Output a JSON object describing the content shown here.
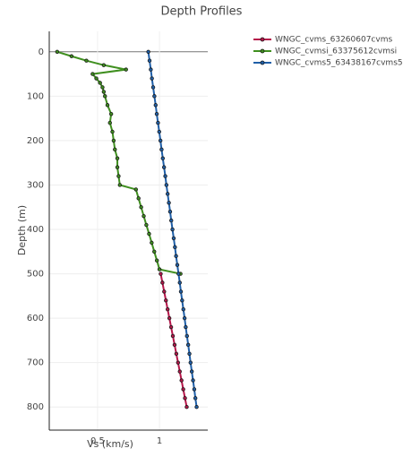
{
  "chart_data": {
    "type": "line",
    "title": "Depth Profiles",
    "xlabel": "Vs (km/s)",
    "ylabel": "Depth (m)",
    "xlim": [
      0.11,
      1.39
    ],
    "xticks": [
      0.5,
      1
    ],
    "ylim": [
      852,
      -46
    ],
    "yticks": [
      0,
      100,
      200,
      300,
      400,
      500,
      600,
      700,
      800
    ],
    "grid": true,
    "legend": "outside right",
    "series": [
      {
        "name": "WNGC_cvms_63260607cvms",
        "color": "#b5174a",
        "x": [
          1.01,
          1.024,
          1.038,
          1.052,
          1.066,
          1.08,
          1.094,
          1.108,
          1.122,
          1.136,
          1.15,
          1.164,
          1.178,
          1.192,
          1.206,
          1.22
        ],
        "y": [
          500,
          520,
          540,
          560,
          580,
          600,
          620,
          640,
          660,
          680,
          700,
          720,
          740,
          760,
          780,
          800
        ]
      },
      {
        "name": "WNGC_cvmsi_63375612cvmsi",
        "color": "#3f8f1f",
        "x": [
          0.174,
          0.29,
          0.41,
          0.55,
          0.73,
          0.46,
          0.49,
          0.52,
          0.54,
          0.55,
          0.56,
          0.58,
          0.61,
          0.6,
          0.62,
          0.63,
          0.64,
          0.66,
          0.66,
          0.67,
          0.68,
          0.81,
          0.831,
          0.852,
          0.873,
          0.894,
          0.916,
          0.937,
          0.958,
          0.979,
          1.0,
          1.17
        ],
        "y": [
          0,
          10,
          20,
          30,
          40,
          50,
          60,
          70,
          80,
          90,
          100,
          120,
          140,
          160,
          180,
          200,
          220,
          240,
          260,
          280,
          300,
          310,
          330,
          350,
          370,
          390,
          410,
          430,
          450,
          470,
          490,
          500
        ]
      },
      {
        "name": "WNGC_cvms5_63438167cvms5",
        "color": "#1f5fa8",
        "x": [
          0.91,
          0.92,
          0.93,
          0.939,
          0.949,
          0.959,
          0.969,
          0.978,
          0.988,
          0.998,
          1.008,
          1.017,
          1.027,
          1.037,
          1.047,
          1.056,
          1.066,
          1.076,
          1.086,
          1.095,
          1.105,
          1.115,
          1.125,
          1.134,
          1.144,
          1.154,
          1.164,
          1.173,
          1.183,
          1.193,
          1.203,
          1.212,
          1.222,
          1.232,
          1.242,
          1.251,
          1.261,
          1.271,
          1.281,
          1.29,
          1.3
        ],
        "y": [
          0,
          20,
          40,
          60,
          80,
          100,
          120,
          140,
          160,
          180,
          200,
          220,
          240,
          260,
          280,
          300,
          320,
          340,
          360,
          380,
          400,
          420,
          440,
          460,
          480,
          500,
          520,
          540,
          560,
          580,
          600,
          620,
          640,
          660,
          680,
          700,
          720,
          740,
          760,
          780,
          800
        ]
      }
    ]
  }
}
